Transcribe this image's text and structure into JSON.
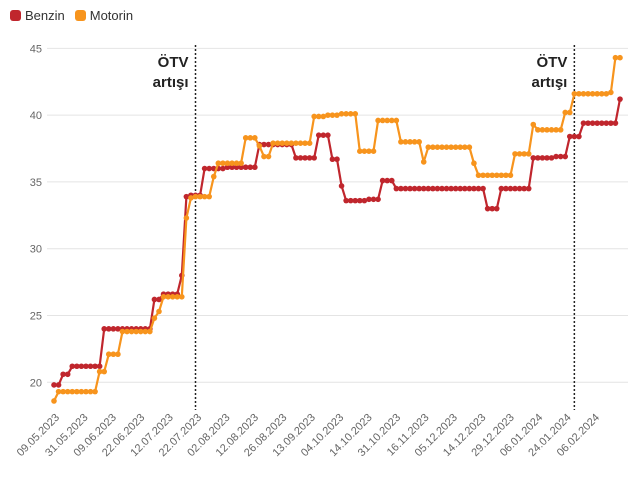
{
  "chart_data": {
    "type": "line",
    "legend": [
      {
        "name": "Benzin",
        "color": "#c0262d"
      },
      {
        "name": "Motorin",
        "color": "#f7941d"
      }
    ],
    "ylim": [
      18,
      46
    ],
    "yticks": [
      20,
      25,
      30,
      35,
      40,
      45
    ],
    "x_tick_labels": [
      "09.05.2023",
      "31.05.2023",
      "09.06.2023",
      "22.06.2023",
      "12.07.2023",
      "22.07.2023",
      "02.08.2023",
      "12.08.2023",
      "26.08.2023",
      "13.09.2023",
      "04.10.2023",
      "14.10.2023",
      "31.10.2023",
      "16.11.2023",
      "05.12.2023",
      "14.12.2023",
      "29.12.2023",
      "06.01.2024",
      "24.01.2024",
      "06.02.2024"
    ],
    "annotations": [
      {
        "line1": "ÖTV",
        "line2": "artışı",
        "x_index": 31
      },
      {
        "line1": "ÖTV",
        "line2": "artışı",
        "x_index": 114
      }
    ],
    "series": [
      {
        "name": "Benzin",
        "color": "#c0262d",
        "values": [
          19.8,
          19.8,
          20.6,
          20.6,
          21.2,
          21.2,
          21.2,
          21.2,
          21.2,
          21.2,
          21.2,
          24.0,
          24.0,
          24.0,
          24.0,
          24.0,
          24.0,
          24.0,
          24.0,
          24.0,
          24.0,
          24.0,
          26.2,
          26.2,
          26.6,
          26.6,
          26.6,
          26.6,
          28.0,
          33.9,
          34.0,
          34.0,
          34.0,
          36.0,
          36.0,
          36.0,
          36.0,
          36.0,
          36.1,
          36.1,
          36.1,
          36.1,
          36.1,
          36.1,
          36.1,
          37.8,
          37.8,
          37.8,
          37.8,
          37.8,
          37.8,
          37.8,
          37.8,
          36.8,
          36.8,
          36.8,
          36.8,
          36.8,
          38.5,
          38.5,
          38.5,
          36.7,
          36.7,
          34.7,
          33.6,
          33.6,
          33.6,
          33.6,
          33.6,
          33.7,
          33.7,
          33.7,
          35.1,
          35.1,
          35.1,
          34.5,
          34.5,
          34.5,
          34.5,
          34.5,
          34.5,
          34.5,
          34.5,
          34.5,
          34.5,
          34.5,
          34.5,
          34.5,
          34.5,
          34.5,
          34.5,
          34.5,
          34.5,
          34.5,
          34.5,
          33.0,
          33.0,
          33.0,
          34.5,
          34.5,
          34.5,
          34.5,
          34.5,
          34.5,
          34.5,
          36.8,
          36.8,
          36.8,
          36.8,
          36.8,
          36.9,
          36.9,
          36.9,
          38.4,
          38.4,
          38.4,
          39.4,
          39.4,
          39.4,
          39.4,
          39.4,
          39.4,
          39.4,
          39.4,
          41.2
        ]
      },
      {
        "name": "Motorin",
        "color": "#f7941d",
        "values": [
          18.6,
          19.3,
          19.3,
          19.3,
          19.3,
          19.3,
          19.3,
          19.3,
          19.3,
          19.3,
          20.8,
          20.8,
          22.1,
          22.1,
          22.1,
          23.8,
          23.8,
          23.8,
          23.8,
          23.8,
          23.8,
          23.8,
          24.8,
          25.3,
          26.4,
          26.4,
          26.4,
          26.4,
          26.4,
          32.3,
          33.8,
          33.9,
          33.9,
          33.9,
          33.9,
          35.4,
          36.4,
          36.4,
          36.4,
          36.4,
          36.4,
          36.4,
          38.3,
          38.3,
          38.3,
          37.7,
          36.9,
          36.9,
          37.9,
          37.9,
          37.9,
          37.9,
          37.9,
          37.9,
          37.9,
          37.9,
          37.9,
          39.9,
          39.9,
          39.9,
          40.0,
          40.0,
          40.0,
          40.1,
          40.1,
          40.1,
          40.1,
          37.3,
          37.3,
          37.3,
          37.3,
          39.6,
          39.6,
          39.6,
          39.6,
          39.6,
          38.0,
          38.0,
          38.0,
          38.0,
          38.0,
          36.5,
          37.6,
          37.6,
          37.6,
          37.6,
          37.6,
          37.6,
          37.6,
          37.6,
          37.6,
          37.6,
          36.4,
          35.5,
          35.5,
          35.5,
          35.5,
          35.5,
          35.5,
          35.5,
          35.5,
          37.1,
          37.1,
          37.1,
          37.1,
          39.3,
          38.9,
          38.9,
          38.9,
          38.9,
          38.9,
          38.9,
          40.2,
          40.2,
          41.6,
          41.6,
          41.6,
          41.6,
          41.6,
          41.6,
          41.6,
          41.6,
          41.7,
          44.3,
          44.3
        ]
      }
    ]
  }
}
